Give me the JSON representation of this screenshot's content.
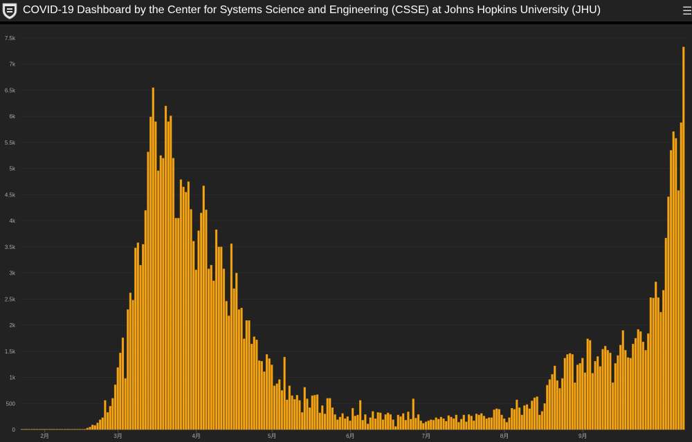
{
  "header": {
    "title": "COVID-19 Dashboard by the Center for Systems Science and Engineering (CSSE) at Johns Hopkins University (JHU)",
    "menu_icon": "hamburger-menu-icon",
    "logo_icon": "jhu-shield-logo"
  },
  "colors": {
    "background": "#222222",
    "bar": "#f4a516",
    "bar_stroke": "#b87400",
    "axis_text": "#aaaaaa",
    "grid": "#2b2b2b"
  },
  "chart_data": {
    "type": "bar",
    "title": "",
    "xlabel": "",
    "ylabel": "",
    "ylim": [
      0,
      7500
    ],
    "y_ticks": [
      0,
      500,
      1000,
      1500,
      2000,
      2500,
      3000,
      3500,
      4000,
      4500,
      5000,
      5500,
      6000,
      6500,
      7000,
      7500
    ],
    "y_tick_labels": [
      "0",
      "500",
      "1k",
      "1.5k",
      "2k",
      "2.5k",
      "3k",
      "3.5k",
      "4k",
      "4.5k",
      "5k",
      "5.5k",
      "6k",
      "6.5k",
      "7k",
      "7.5k"
    ],
    "x_tick_labels": [
      "2月",
      "3月",
      "4月",
      "5月",
      "6月",
      "7月",
      "8月",
      "9月"
    ],
    "x_tick_bar_index": [
      9,
      38,
      69,
      99,
      130,
      160,
      191,
      222
    ],
    "series": [
      {
        "values": [
          0,
          0,
          0,
          0,
          0,
          0,
          0,
          0,
          0,
          0,
          0,
          0,
          0,
          0,
          0,
          0,
          0,
          0,
          0,
          0,
          0,
          0,
          0,
          0,
          0,
          0,
          30,
          50,
          90,
          80,
          130,
          190,
          230,
          560,
          330,
          450,
          600,
          860,
          1190,
          1470,
          1760,
          980,
          2300,
          2620,
          2480,
          3480,
          3580,
          3150,
          3550,
          4200,
          5320,
          5990,
          6550,
          5900,
          4960,
          5250,
          5200,
          6200,
          5900,
          6010,
          5200,
          4050,
          4050,
          4790,
          4650,
          4550,
          4750,
          4220,
          3610,
          3060,
          3810,
          4150,
          4670,
          4210,
          3080,
          3150,
          2850,
          3830,
          3500,
          3500,
          3080,
          2460,
          2180,
          3560,
          2700,
          3000,
          2300,
          2330,
          1740,
          2090,
          2090,
          1640,
          1780,
          1720,
          1320,
          1310,
          1110,
          1440,
          1360,
          1240,
          840,
          880,
          960,
          750,
          1390,
          570,
          840,
          650,
          580,
          660,
          560,
          330,
          810,
          590,
          420,
          650,
          660,
          670,
          320,
          460,
          300,
          600,
          600,
          420,
          290,
          190,
          240,
          310,
          210,
          250,
          170,
          410,
          260,
          280,
          560,
          180,
          290,
          110,
          230,
          350,
          210,
          330,
          320,
          190,
          290,
          320,
          290,
          190,
          60,
          280,
          250,
          310,
          180,
          340,
          200,
          590,
          220,
          290,
          170,
          120,
          150,
          170,
          190,
          180,
          230,
          200,
          240,
          210,
          160,
          270,
          240,
          210,
          280,
          140,
          200,
          280,
          150,
          290,
          260,
          170,
          300,
          280,
          310,
          260,
          210,
          230,
          230,
          380,
          400,
          390,
          280,
          210,
          140,
          230,
          410,
          390,
          570,
          420,
          280,
          460,
          480,
          400,
          550,
          610,
          630,
          280,
          350,
          500,
          850,
          960,
          1060,
          1220,
          940,
          790,
          980,
          1370,
          1440,
          1460,
          1440,
          900,
          1240,
          1270,
          1370,
          1090,
          1740,
          1710,
          1080,
          1310,
          1400,
          1210,
          1540,
          1600,
          1520,
          1470,
          900,
          1270,
          1420,
          1620,
          1900,
          1520,
          1380,
          1370,
          1640,
          1750,
          1920,
          1880,
          1680,
          1520,
          1840,
          2530,
          2520,
          2830,
          2530,
          2250,
          2670,
          3670,
          4460,
          5350,
          5710,
          5580,
          4580,
          5880,
          7330
        ]
      }
    ]
  }
}
